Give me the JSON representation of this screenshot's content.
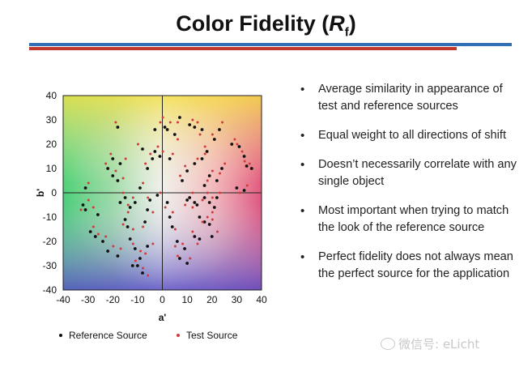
{
  "slide": {
    "title_main": "Color Fidelity (",
    "title_r": "R",
    "title_sub": "f",
    "title_close": ")",
    "colors": {
      "blue_rule": "#2f6db5",
      "red_rule": "#c0392b"
    }
  },
  "bullets": [
    "Average similarity in appearance of test and reference sources",
    "Equal weight to all directions of shift",
    "Doesn’t necessarily correlate with any single object",
    "Most important when trying to match the look of the reference source",
    "Perfect fidelity does not always mean the perfect source for the application"
  ],
  "watermark": {
    "text": "微信号: eLicht",
    "icon": "wechat-icon"
  },
  "chart_data": {
    "type": "scatter",
    "title": "",
    "xlabel": "a'",
    "ylabel": "b'",
    "xlim": [
      -40,
      40
    ],
    "ylim": [
      -40,
      40
    ],
    "xticks": [
      -40,
      -30,
      -20,
      -10,
      0,
      10,
      20,
      30,
      40
    ],
    "yticks": [
      -40,
      -30,
      -20,
      -10,
      0,
      10,
      20,
      30,
      40
    ],
    "grid": false,
    "legend_position": "bottom",
    "background": "hue-gradient (a', b' color space)",
    "series": [
      {
        "name": "Reference Source",
        "color": "#111111",
        "marker": "dot",
        "points": [
          [
            -31,
            2
          ],
          [
            -32,
            -5
          ],
          [
            -31,
            -7
          ],
          [
            -29,
            -16
          ],
          [
            -27,
            -18
          ],
          [
            -24,
            -20
          ],
          [
            -22,
            -24
          ],
          [
            -18,
            -26
          ],
          [
            -20,
            7
          ],
          [
            -18,
            5
          ],
          [
            -17,
            12
          ],
          [
            -18,
            27
          ],
          [
            -15,
            -2
          ],
          [
            -17,
            -4
          ],
          [
            -15,
            -11
          ],
          [
            -14,
            -14
          ],
          [
            -13,
            -19
          ],
          [
            -11,
            -23
          ],
          [
            -10,
            -30
          ],
          [
            -12,
            -30
          ],
          [
            -9,
            -27
          ],
          [
            -8,
            -33
          ],
          [
            -6,
            -22
          ],
          [
            -6,
            -7
          ],
          [
            -5,
            -3
          ],
          [
            -2,
            -1
          ],
          [
            -4,
            14
          ],
          [
            -3,
            17
          ],
          [
            -1,
            15
          ],
          [
            -3,
            26
          ],
          [
            1,
            27
          ],
          [
            2,
            26
          ],
          [
            3,
            14
          ],
          [
            2,
            -4
          ],
          [
            3,
            -10
          ],
          [
            4,
            -14
          ],
          [
            6,
            -20
          ],
          [
            9,
            -23
          ],
          [
            7,
            -27
          ],
          [
            10,
            -29
          ],
          [
            10,
            -3
          ],
          [
            11,
            -2
          ],
          [
            13,
            -4
          ],
          [
            14,
            -5
          ],
          [
            15,
            -10
          ],
          [
            17,
            -12
          ],
          [
            19,
            -13
          ],
          [
            20,
            -18
          ],
          [
            15,
            -19
          ],
          [
            13,
            -18
          ],
          [
            17,
            -2
          ],
          [
            19,
            -4
          ],
          [
            21,
            -6
          ],
          [
            22,
            -2
          ],
          [
            8,
            5
          ],
          [
            10,
            9
          ],
          [
            13,
            12
          ],
          [
            16,
            14
          ],
          [
            18,
            17
          ],
          [
            17,
            3
          ],
          [
            19,
            7
          ],
          [
            21,
            22
          ],
          [
            23,
            26
          ],
          [
            11,
            28
          ],
          [
            13,
            27
          ],
          [
            16,
            26
          ],
          [
            28,
            20
          ],
          [
            31,
            19
          ],
          [
            33,
            15
          ],
          [
            34,
            11
          ],
          [
            36,
            10
          ],
          [
            33,
            1
          ],
          [
            30,
            2
          ],
          [
            24,
            10
          ],
          [
            22,
            5
          ],
          [
            7,
            31
          ],
          [
            5,
            24
          ],
          [
            -8,
            18
          ],
          [
            -6,
            10
          ],
          [
            -9,
            2
          ],
          [
            -11,
            -4
          ],
          [
            -13,
            -6
          ],
          [
            -20,
            14
          ],
          [
            -22,
            10
          ],
          [
            -26,
            -9
          ],
          [
            -7,
            -12
          ]
        ]
      },
      {
        "name": "Test Source",
        "color": "#d23b3b",
        "marker": "dot",
        "points": [
          [
            -30,
            4
          ],
          [
            -30,
            -3
          ],
          [
            -33,
            -7
          ],
          [
            -28,
            -14
          ],
          [
            -26,
            -17
          ],
          [
            -23,
            -18
          ],
          [
            -20,
            -22
          ],
          [
            -17,
            -23
          ],
          [
            -19,
            9
          ],
          [
            -16,
            6
          ],
          [
            -15,
            14
          ],
          [
            -19,
            29
          ],
          [
            -16,
            0
          ],
          [
            -14,
            -5
          ],
          [
            -16,
            -13
          ],
          [
            -12,
            -15
          ],
          [
            -12,
            -21
          ],
          [
            -9,
            -24
          ],
          [
            -8,
            -31
          ],
          [
            -11,
            -28
          ],
          [
            -7,
            -25
          ],
          [
            -6,
            -34
          ],
          [
            -4,
            -21
          ],
          [
            -4,
            -8
          ],
          [
            -6,
            -2
          ],
          [
            -1,
            0
          ],
          [
            -5,
            16
          ],
          [
            -2,
            19
          ],
          [
            0,
            17
          ],
          [
            -1,
            29
          ],
          [
            0,
            31
          ],
          [
            3,
            29
          ],
          [
            4,
            16
          ],
          [
            1,
            -6
          ],
          [
            4,
            -8
          ],
          [
            5,
            -15
          ],
          [
            5,
            -22
          ],
          [
            8,
            -21
          ],
          [
            6,
            -26
          ],
          [
            11,
            -27
          ],
          [
            9,
            -5
          ],
          [
            12,
            0
          ],
          [
            12,
            -6
          ],
          [
            16,
            -3
          ],
          [
            16,
            -12
          ],
          [
            18,
            -10
          ],
          [
            20,
            -11
          ],
          [
            22,
            -16
          ],
          [
            14,
            -21
          ],
          [
            12,
            -16
          ],
          [
            18,
            0
          ],
          [
            20,
            -2
          ],
          [
            20,
            -8
          ],
          [
            23,
            0
          ],
          [
            7,
            7
          ],
          [
            9,
            11
          ],
          [
            14,
            14
          ],
          [
            17,
            16
          ],
          [
            17,
            19
          ],
          [
            18,
            5
          ],
          [
            20,
            9
          ],
          [
            20,
            24
          ],
          [
            24,
            29
          ],
          [
            12,
            30
          ],
          [
            14,
            29
          ],
          [
            15,
            24
          ],
          [
            29,
            22
          ],
          [
            30,
            20
          ],
          [
            32,
            17
          ],
          [
            33,
            13
          ],
          [
            35,
            12
          ],
          [
            34,
            3
          ],
          [
            31,
            0
          ],
          [
            25,
            12
          ],
          [
            23,
            8
          ],
          [
            6,
            29
          ],
          [
            6,
            22
          ],
          [
            -10,
            20
          ],
          [
            -7,
            12
          ],
          [
            -8,
            4
          ],
          [
            -12,
            -2
          ],
          [
            -14,
            -8
          ],
          [
            -21,
            16
          ],
          [
            -23,
            12
          ],
          [
            -28,
            -6
          ],
          [
            -8,
            -14
          ]
        ]
      }
    ]
  }
}
